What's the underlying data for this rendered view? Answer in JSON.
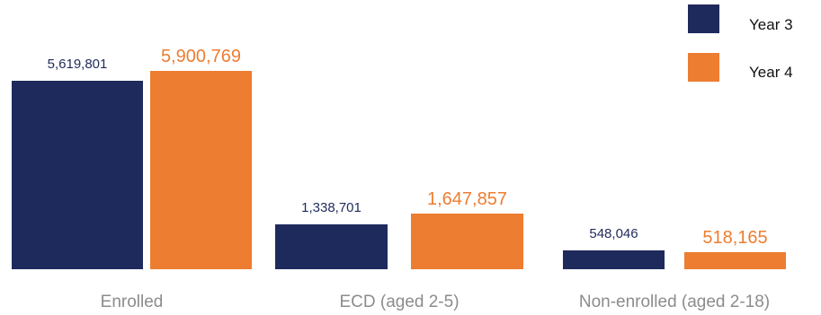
{
  "chart_data": {
    "type": "bar",
    "categories": [
      "Enrolled",
      "ECD (aged 2-5)",
      "Non-enrolled (aged 2-18)"
    ],
    "series": [
      {
        "name": "Year 3",
        "values": [
          5619801,
          1338701,
          548046
        ],
        "labels": [
          "5,619,801",
          "1,338,701",
          "548,046"
        ],
        "color": "#1f2a5c"
      },
      {
        "name": "Year 4",
        "values": [
          5900769,
          1647857,
          518165
        ],
        "labels": [
          "5,900,769",
          "1,647,857",
          "518,165"
        ],
        "color": "#ed7d31"
      }
    ],
    "title": "",
    "xlabel": "",
    "ylabel": "",
    "ylim": [
      0,
      5900769
    ],
    "grid": false,
    "legend_position": "top-right"
  }
}
